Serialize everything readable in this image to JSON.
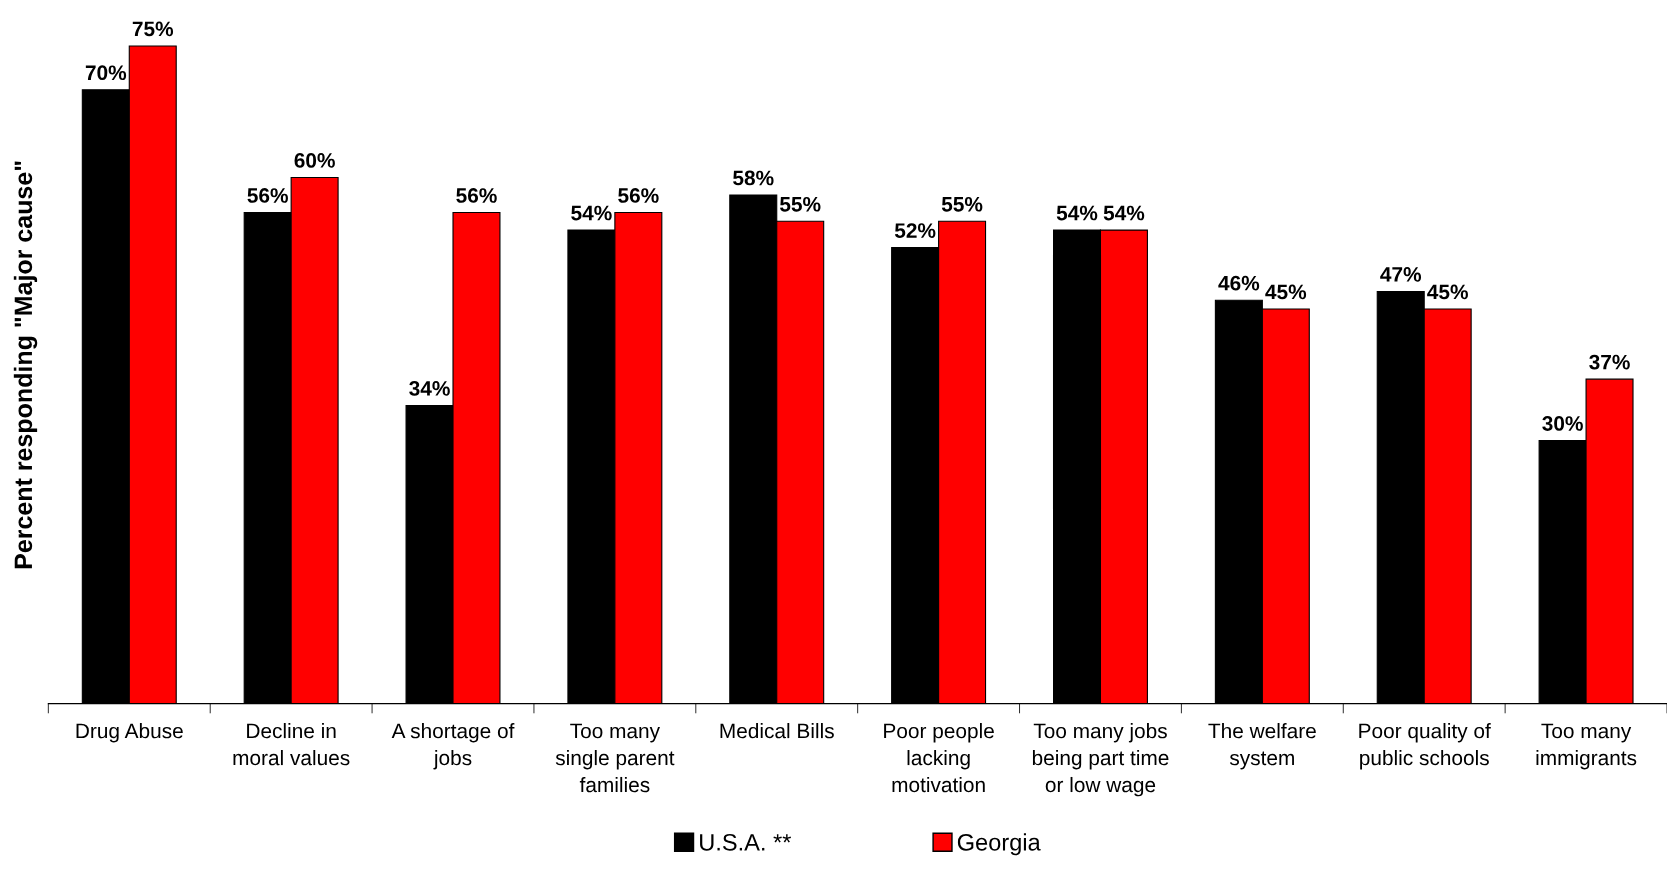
{
  "chart_data": {
    "type": "bar",
    "ylabel": "Percent responding \"Major cause\"",
    "categories": [
      "Drug Abuse",
      "Decline in\nmoral values",
      "A shortage of\njobs",
      "Too many\nsingle parent\nfamilies",
      "Medical Bills",
      "Poor people\nlacking\nmotivation",
      "Too many jobs\nbeing part time\nor low wage",
      "The welfare\nsystem",
      "Poor quality of\npublic schools",
      "Too many\nimmigrants"
    ],
    "series": [
      {
        "name": "U.S.A. **",
        "color": "#000000",
        "values": [
          70,
          56,
          34,
          54,
          58,
          52,
          54,
          46,
          47,
          30
        ],
        "value_labels": [
          "70%",
          "56%",
          "34%",
          "54%",
          "58%",
          "52%",
          "54%",
          "46%",
          "47%",
          "30%"
        ]
      },
      {
        "name": "Georgia",
        "color": "#ff0000",
        "values": [
          75,
          60,
          56,
          56,
          55,
          55,
          54,
          45,
          45,
          37
        ],
        "value_labels": [
          "75%",
          "60%",
          "56%",
          "56%",
          "55%",
          "55%",
          "54%",
          "45%",
          "45%",
          "37%"
        ]
      }
    ],
    "legend": "bottom",
    "grid": false
  }
}
